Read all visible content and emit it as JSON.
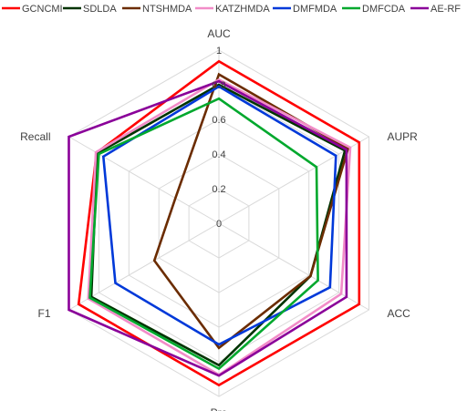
{
  "chart_data": {
    "type": "radar",
    "axes": [
      "AUC",
      "AUPR",
      "ACC",
      "Pre",
      "F1",
      "Recall"
    ],
    "radial_ticks": [
      "0",
      "0.2",
      "0.4",
      "0.6",
      "0.8",
      "1"
    ],
    "rlim": [
      0,
      1
    ],
    "grid": true,
    "legend_position": "top",
    "series": [
      {
        "name": "GCNCMI",
        "color": "#ff0000",
        "values": [
          0.935,
          0.935,
          0.935,
          0.935,
          0.935,
          0.815
        ]
      },
      {
        "name": "SDLDA",
        "color": "#003300",
        "values": [
          0.8,
          0.84,
          0.61,
          0.82,
          0.85,
          0.81
        ]
      },
      {
        "name": "NTSHMDA",
        "color": "#6b2c00",
        "values": [
          0.86,
          0.86,
          0.61,
          0.72,
          0.43,
          0.29
        ]
      },
      {
        "name": "KATZHMDA",
        "color": "#f28cc8",
        "values": [
          0.83,
          0.875,
          0.815,
          0.875,
          0.87,
          0.82
        ]
      },
      {
        "name": "DMFMDA",
        "color": "#0039d9",
        "values": [
          0.79,
          0.78,
          0.74,
          0.7,
          0.69,
          0.77
        ]
      },
      {
        "name": "DMFCDA",
        "color": "#00a82d",
        "values": [
          0.72,
          0.65,
          0.66,
          0.84,
          0.86,
          0.8
        ]
      },
      {
        "name": "AE-RF",
        "color": "#8a0099",
        "values": [
          0.82,
          0.85,
          0.85,
          0.88,
          1.0,
          1.0
        ]
      }
    ]
  }
}
